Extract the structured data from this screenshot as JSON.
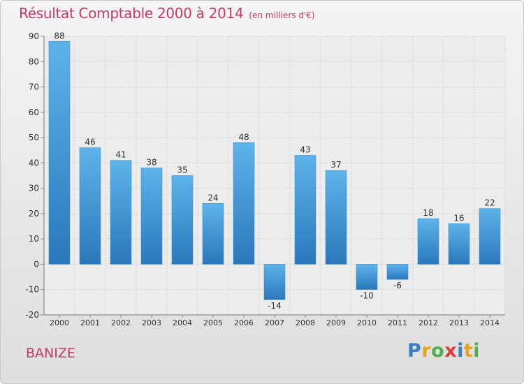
{
  "header": {
    "title": "Résultat Comptable 2000 à 2014",
    "unit": "(en milliers d'€)"
  },
  "footer": {
    "commune": "BANIZE",
    "logo_letters": [
      "P",
      "r",
      "o",
      "x",
      "i",
      "t",
      "i"
    ],
    "logo_colors": [
      "#3a7fc4",
      "#e8a21c",
      "#4caf50",
      "#e23a3a",
      "#3a7fc4",
      "#e8a21c",
      "#4caf50"
    ]
  },
  "colors": {
    "title": "#c23a67",
    "bar_light": "#5eb3ea",
    "bar_dark": "#2a78bb"
  },
  "chart_data": {
    "type": "bar",
    "title": "Résultat Comptable 2000 à 2014",
    "subtitle": "(en milliers d'€)",
    "categories": [
      "2000",
      "2001",
      "2002",
      "2003",
      "2004",
      "2005",
      "2006",
      "2007",
      "2008",
      "2009",
      "2010",
      "2011",
      "2012",
      "2013",
      "2014"
    ],
    "values": [
      88,
      46,
      41,
      38,
      35,
      24,
      48,
      -14,
      43,
      37,
      -10,
      -6,
      18,
      16,
      22
    ],
    "value_labels": [
      "88",
      "46",
      "41",
      "38",
      "35",
      "24",
      "48",
      "-14",
      "43",
      "37",
      "-10",
      "-6",
      "18",
      "16",
      "22"
    ],
    "ylim": [
      -20,
      90
    ],
    "yticks": [
      -20,
      -10,
      0,
      10,
      20,
      30,
      40,
      50,
      60,
      70,
      80,
      90
    ],
    "ytick_labels": [
      "-20",
      "-10",
      "0",
      "10",
      "20",
      "30",
      "40",
      "50",
      "60",
      "70",
      "80",
      "90"
    ],
    "xlabel": "",
    "ylabel": "",
    "grid": true
  }
}
